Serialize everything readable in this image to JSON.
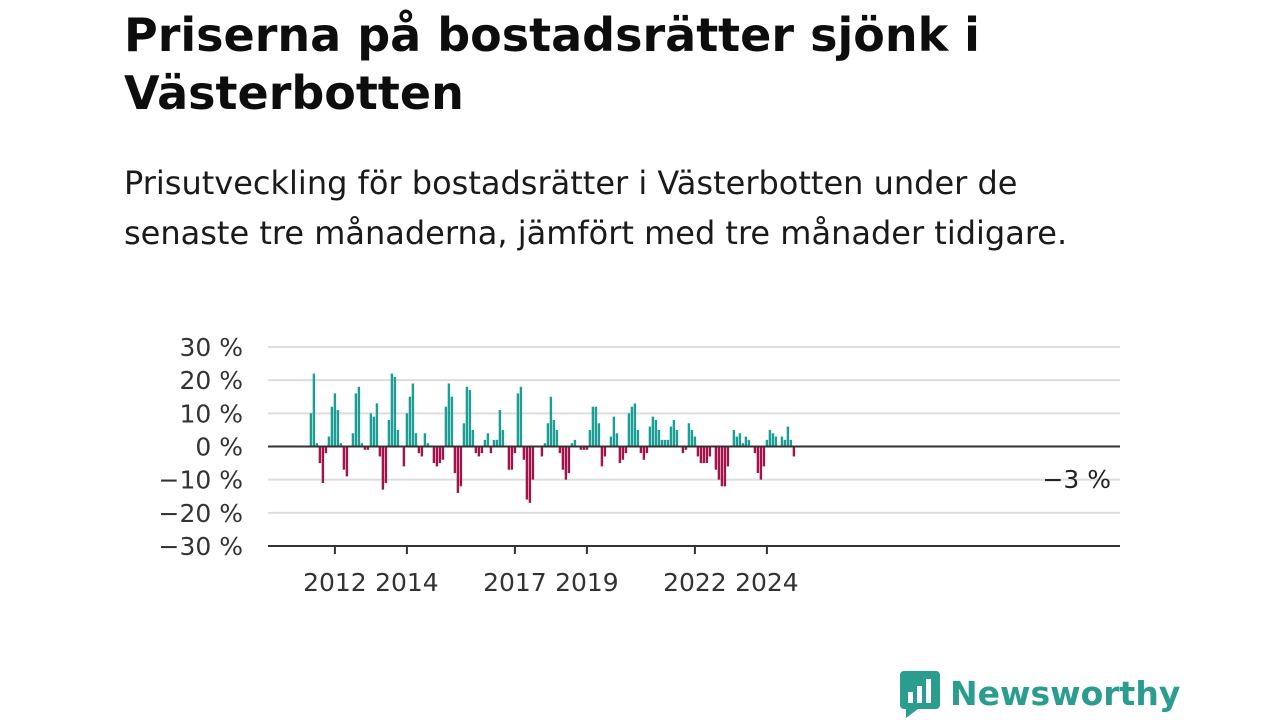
{
  "title": "Priserna på bostadsrätter sjönk i Västerbotten",
  "subtitle": "Prisutveckling för bostadsrätter i Västerbotten under de senaste tre månaderna, jämfört med tre månader tidigare.",
  "brand": {
    "name": "Newsworthy",
    "color": "#2a9d8f"
  },
  "colors": {
    "positive": "#1a9e96",
    "negative": "#a3124a",
    "grid": "#dddddd",
    "axis": "#333333"
  },
  "chart_data": {
    "type": "bar",
    "title": "Priserna på bostadsrätter sjönk i Västerbotten",
    "xlabel": "",
    "ylabel": "",
    "ylim": [
      -30,
      30
    ],
    "y_ticks": [
      "30 %",
      "20 %",
      "10 %",
      "0 %",
      "−10 %",
      "−20 %",
      "−30 %"
    ],
    "y_tick_values": [
      30,
      20,
      10,
      0,
      -10,
      -20,
      -30
    ],
    "x_ticks": [
      "2012",
      "2014",
      "2017",
      "2019",
      "2022",
      "2024"
    ],
    "x_tick_values": [
      "2012-01",
      "2014-01",
      "2017-01",
      "2019-01",
      "2022-01",
      "2024-01"
    ],
    "x_start": "2011-05",
    "last_label": "−3 %",
    "grid": true,
    "legend": "none",
    "values": [
      10,
      22,
      1,
      -5,
      -11,
      -2,
      3,
      12,
      16,
      11,
      1,
      -7,
      -9,
      0,
      4,
      16,
      18,
      1,
      -1,
      -1,
      10,
      9,
      13,
      -3,
      -13,
      -11,
      8,
      22,
      21,
      5,
      0,
      -6,
      10,
      15,
      19,
      4,
      -2,
      -3,
      4,
      1,
      0,
      -5,
      -6,
      -5,
      -4,
      12,
      19,
      15,
      -8,
      -14,
      -12,
      7,
      18,
      17,
      5,
      -2,
      -3,
      -2,
      2,
      4,
      -2,
      2,
      2,
      11,
      5,
      0,
      -7,
      -7,
      -2,
      16,
      18,
      -4,
      -16,
      -17,
      -10,
      0,
      0,
      -3,
      1,
      7,
      15,
      8,
      5,
      -2,
      -7,
      -10,
      -8,
      1,
      2,
      0,
      -1,
      -1,
      -1,
      5,
      12,
      12,
      7,
      -6,
      -3,
      0,
      3,
      9,
      4,
      -5,
      -4,
      -2,
      10,
      12,
      13,
      5,
      -2,
      -4,
      -2,
      6,
      9,
      8,
      5,
      2,
      2,
      2,
      6,
      8,
      5,
      0,
      -2,
      -1,
      7,
      5,
      3,
      -3,
      -5,
      -5,
      -5,
      -3,
      0,
      -7,
      -10,
      -12,
      -12,
      -6,
      0,
      5,
      3,
      4,
      1,
      3,
      2,
      0,
      -2,
      -8,
      -10,
      -6,
      2,
      5,
      4,
      3,
      0,
      3,
      2,
      6,
      2,
      -3
    ]
  }
}
